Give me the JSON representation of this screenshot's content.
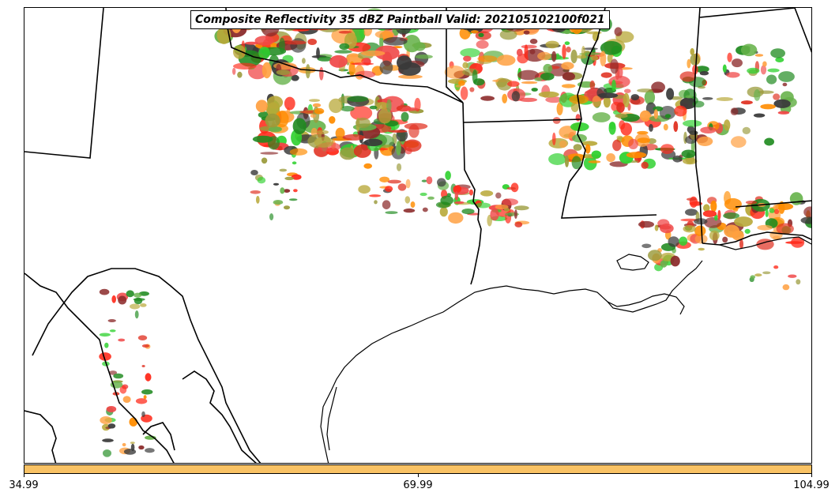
{
  "map": {
    "title": "Composite Reflectivity 35 dBZ Paintball Valid: 202105102100f021"
  },
  "legend": {
    "colorbar_color": "#f9c264",
    "ticks": [
      "34.99",
      "69.99",
      "104.99"
    ]
  },
  "palette": {
    "member_colors": [
      "#ff2a1a",
      "#ff8c00",
      "#2fd12f",
      "#1f8a1f",
      "#8b2a2a",
      "#9a9a3a",
      "#3a3a3a",
      "#ffa040",
      "#f04848",
      "#66b24a",
      "#b8a838",
      "#e03020"
    ],
    "land_outline": "#000000",
    "background": "#ffffff"
  }
}
